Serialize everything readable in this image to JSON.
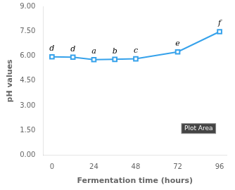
{
  "chart_data": {
    "type": "line",
    "x": [
      0,
      12,
      24,
      36,
      48,
      72,
      96
    ],
    "values": [
      5.95,
      5.93,
      5.78,
      5.8,
      5.83,
      6.25,
      7.47
    ],
    "marker": "square",
    "xlabel": "Fermentation time (hours)",
    "ylabel": "pH values",
    "xlim": [
      -5,
      100
    ],
    "xticks": [
      0,
      24,
      48,
      72,
      96
    ],
    "ylim": [
      0,
      9
    ],
    "yticks": [
      {
        "value": 0,
        "label": "0.00"
      },
      {
        "value": 1.5,
        "label": "1.50"
      },
      {
        "value": 3,
        "label": "3.00"
      },
      {
        "value": 4.5,
        "label": "4.50"
      },
      {
        "value": 6,
        "label": "6.00"
      },
      {
        "value": 7.5,
        "label": "7.50"
      },
      {
        "value": 9,
        "label": "9.00"
      }
    ],
    "grid": false,
    "annotations": [
      {
        "text": "d",
        "x": 0,
        "y": 5.95
      },
      {
        "text": "d",
        "x": 12,
        "y": 5.93
      },
      {
        "text": "a",
        "x": 24,
        "y": 5.78
      },
      {
        "text": "b",
        "x": 36,
        "y": 5.8
      },
      {
        "text": "c",
        "x": 48,
        "y": 5.83
      },
      {
        "text": "e",
        "x": 72,
        "y": 6.25
      },
      {
        "text": "f",
        "x": 96,
        "y": 7.47
      },
      {
        "text": "Plot Area",
        "x": 84
      }
    ]
  }
}
